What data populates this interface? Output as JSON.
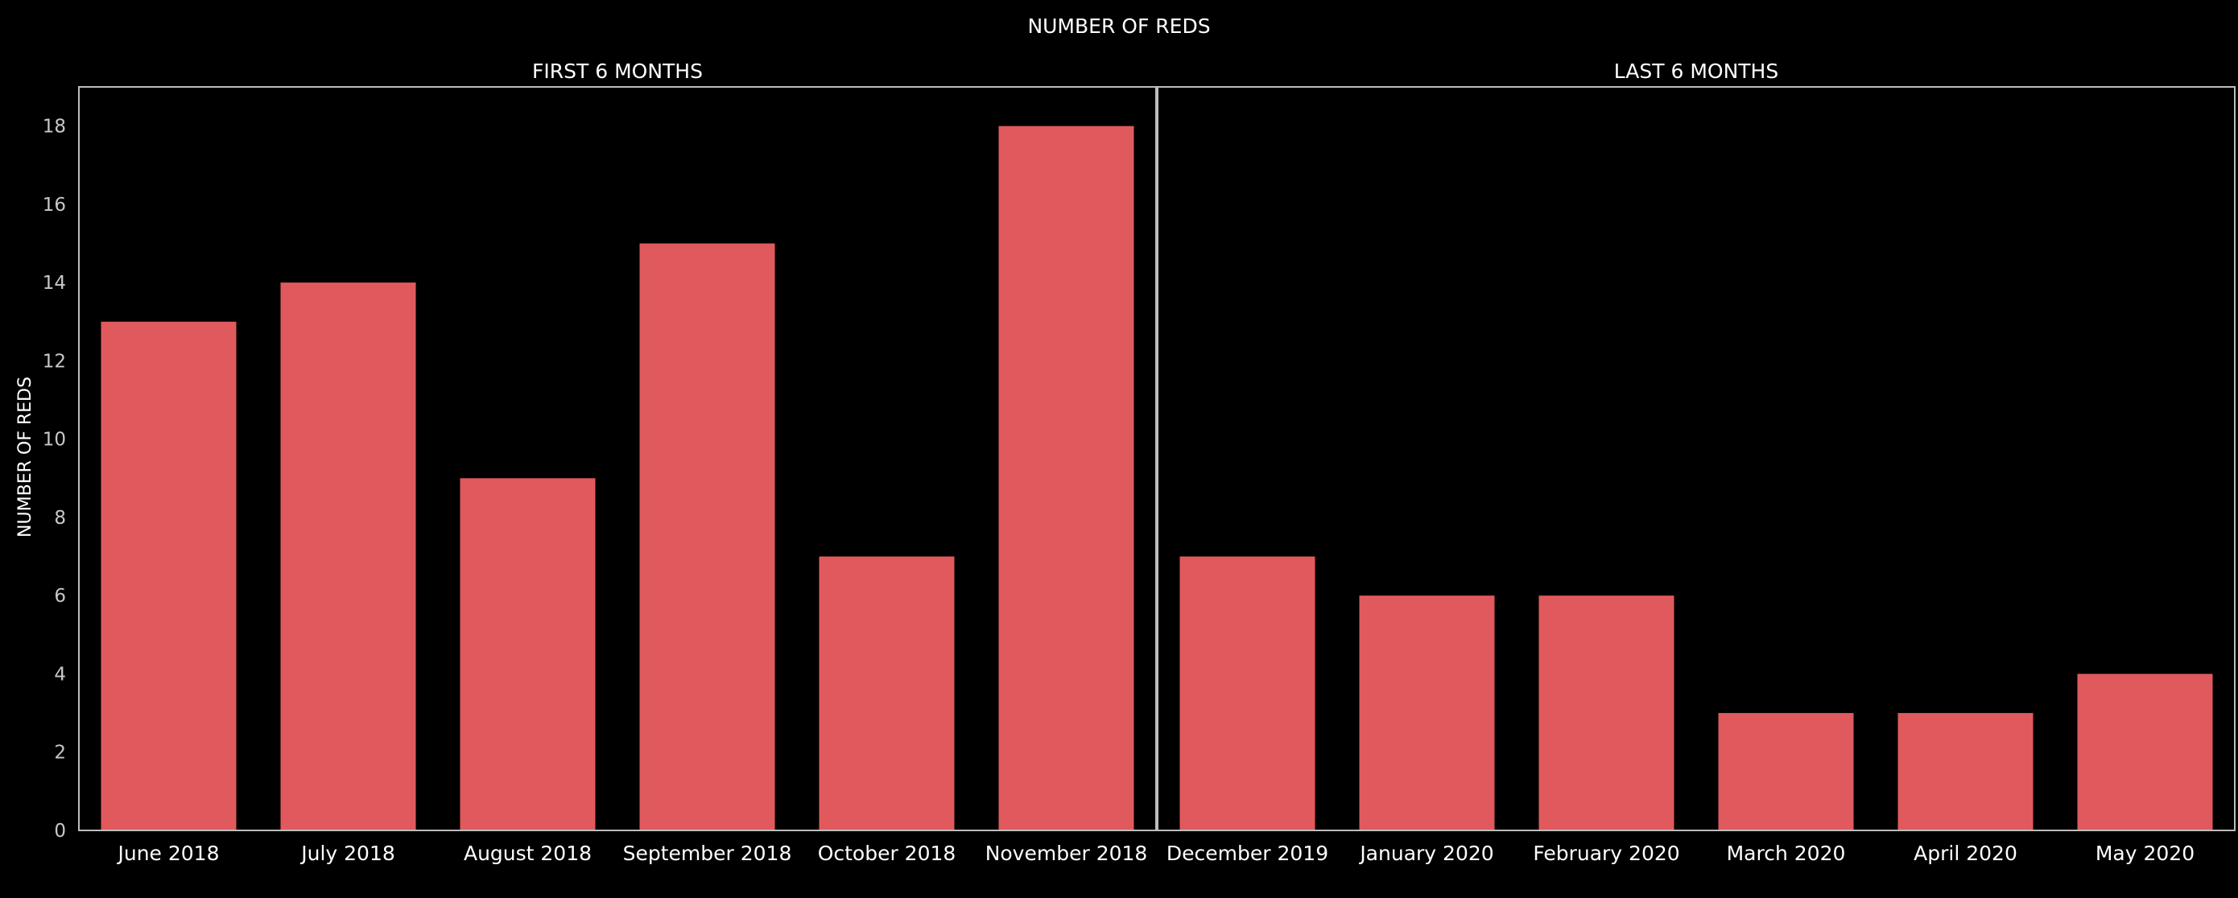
{
  "chart_data": {
    "type": "bar",
    "title": "NUMBER OF REDS",
    "ylabel": "NUMBER OF REDS",
    "ylim": [
      0,
      19
    ],
    "yticks": [
      0,
      2,
      4,
      6,
      8,
      10,
      12,
      14,
      16,
      18
    ],
    "grid": false,
    "bar_color": "#e05a5d",
    "background_color": "#000000",
    "panels": [
      {
        "title": "FIRST 6 MONTHS",
        "categories": [
          "June 2018",
          "July 2018",
          "August 2018",
          "September 2018",
          "October 2018",
          "November 2018"
        ],
        "values": [
          13,
          14,
          9,
          15,
          7,
          18
        ]
      },
      {
        "title": "LAST 6 MONTHS",
        "categories": [
          "December 2019",
          "January 2020",
          "February 2020",
          "March 2020",
          "April 2020",
          "May 2020"
        ],
        "values": [
          7,
          6,
          6,
          3,
          3,
          4
        ]
      }
    ]
  }
}
